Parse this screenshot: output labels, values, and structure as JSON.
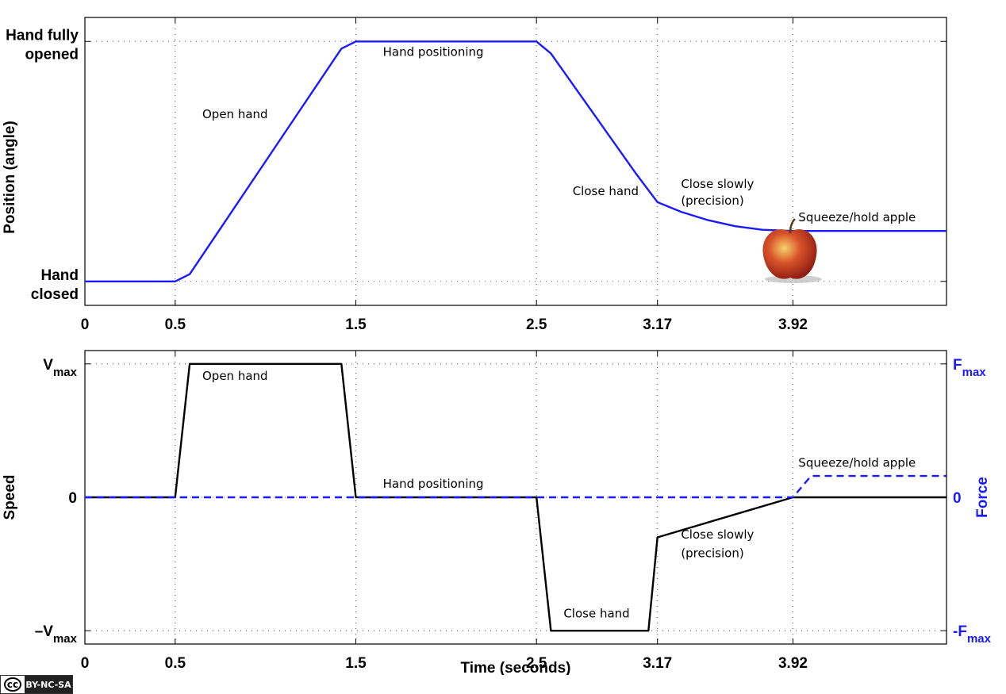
{
  "chart_data": [
    {
      "type": "line",
      "x_ticks": [
        {
          "value": 0,
          "label": "0"
        },
        {
          "value": 0.5,
          "label": "0.5"
        },
        {
          "value": 1.5,
          "label": "1.5"
        },
        {
          "value": 2.5,
          "label": "2.5"
        },
        {
          "value": 3.17,
          "label": "3.17"
        },
        {
          "value": 3.92,
          "label": "3.92"
        }
      ],
      "xlim": [
        0,
        4.77
      ],
      "ylim": [
        -0.1,
        1.1
      ],
      "ylabel": "Position (angle)",
      "y_ticks": [
        {
          "value": 1,
          "label": "Hand fully opened"
        },
        {
          "value": 0,
          "label": "Hand closed"
        }
      ],
      "grid": true,
      "series": [
        {
          "color": "#1a1aff",
          "style": "solid",
          "x": [
            0,
            0.5,
            0.58,
            1.42,
            1.5,
            2.5,
            2.58,
            3.05,
            3.17,
            3.3,
            3.45,
            3.6,
            3.75,
            3.92,
            4.77
          ],
          "y": [
            0,
            0,
            0.03,
            0.97,
            1.0,
            1.0,
            0.95,
            0.45,
            0.33,
            0.29,
            0.255,
            0.23,
            0.215,
            0.21,
            0.21
          ]
        }
      ],
      "annotations": [
        {
          "text": "Open hand",
          "x": 0.65,
          "y": 0.68
        },
        {
          "text": "Hand positioning",
          "x": 1.65,
          "y": 0.94
        },
        {
          "text": "Close hand",
          "x": 2.7,
          "y": 0.36
        },
        {
          "text": "Close slowly",
          "x": 3.3,
          "y": 0.39
        },
        {
          "text": "(precision)",
          "x": 3.3,
          "y": 0.32
        },
        {
          "text": "Squeeze/hold apple",
          "x": 3.95,
          "y": 0.25
        }
      ]
    },
    {
      "type": "line",
      "x_ticks": [
        {
          "value": 0,
          "label": "0"
        },
        {
          "value": 0.5,
          "label": "0.5"
        },
        {
          "value": 1.5,
          "label": "1.5"
        },
        {
          "value": 2.5,
          "label": "2.5"
        },
        {
          "value": 3.17,
          "label": "3.17"
        },
        {
          "value": 3.92,
          "label": "3.92"
        }
      ],
      "xlim": [
        0,
        4.77
      ],
      "ylim": [
        -1.1,
        1.1
      ],
      "xlabel": "Time (seconds)",
      "ylabel": "Speed",
      "y2label": "Force",
      "y_ticks": [
        {
          "value": 1,
          "main": "V",
          "sub": "max"
        },
        {
          "value": 0,
          "main": "0",
          "sub": ""
        },
        {
          "value": -1,
          "main": "–V",
          "sub": "max"
        }
      ],
      "y2_ticks": [
        {
          "value": 1,
          "main": "F",
          "sub": "max"
        },
        {
          "value": 0,
          "main": "0",
          "sub": ""
        },
        {
          "value": -1,
          "main": "-F",
          "sub": "max"
        }
      ],
      "grid": true,
      "series": [
        {
          "color": "#000000",
          "style": "solid",
          "x": [
            0,
            0.5,
            0.58,
            1.42,
            1.5,
            2.5,
            2.58,
            3.12,
            3.17,
            3.92,
            4.77
          ],
          "y": [
            0,
            0,
            1,
            1,
            0,
            0,
            -1,
            -1,
            -0.3,
            0,
            0
          ]
        },
        {
          "color": "#1a1aff",
          "style": "dashed",
          "x": [
            0,
            3.92,
            4.02,
            4.77
          ],
          "y": [
            0,
            0,
            0.16,
            0.16
          ]
        }
      ],
      "annotations": [
        {
          "text": "Open hand",
          "x": 0.65,
          "y": 0.88
        },
        {
          "text": "Hand positioning",
          "x": 1.65,
          "y": 0.07
        },
        {
          "text": "Close hand",
          "x": 2.65,
          "y": -0.9
        },
        {
          "text": "Close slowly",
          "x": 3.3,
          "y": -0.31
        },
        {
          "text": "(precision)",
          "x": 3.3,
          "y": -0.45
        },
        {
          "text": "Squeeze/hold apple",
          "x": 3.95,
          "y": 0.23
        }
      ]
    }
  ],
  "license": {
    "cc": "cc",
    "text": "BY-NC-SA"
  }
}
